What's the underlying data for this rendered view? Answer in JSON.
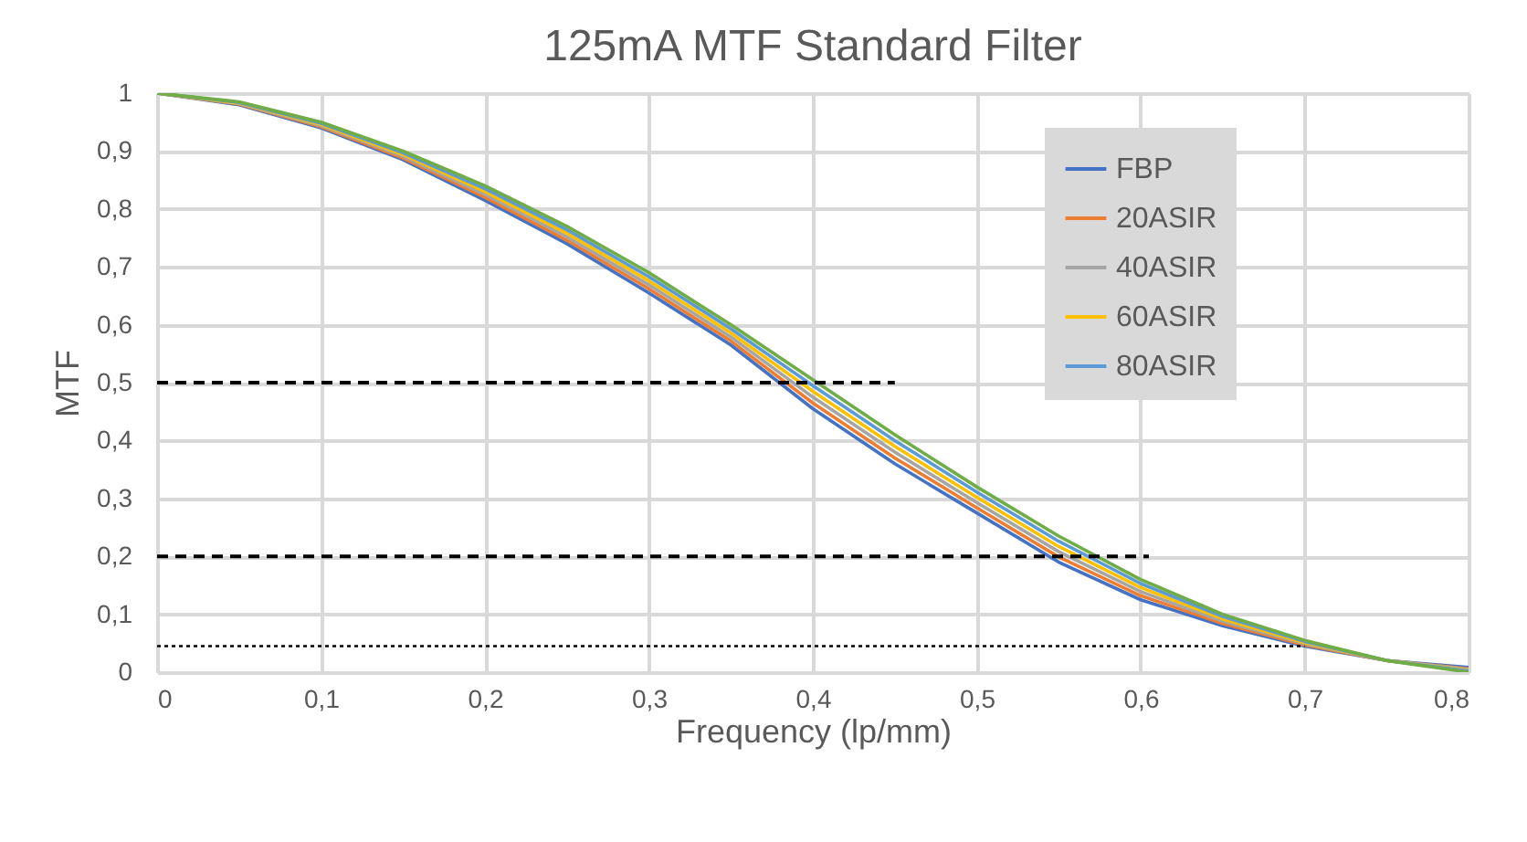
{
  "chart_data": {
    "type": "line",
    "title": "125mA MTF Standard Filter",
    "xlabel": "Frequency (lp/mm)",
    "ylabel": "MTF",
    "x": [
      0,
      0.05,
      0.1,
      0.15,
      0.2,
      0.25,
      0.3,
      0.35,
      0.4,
      0.45,
      0.5,
      0.55,
      0.6,
      0.65,
      0.7,
      0.75,
      0.8
    ],
    "series": [
      {
        "name": "FBP",
        "color": "#4472c4",
        "values": [
          1,
          0.98,
          0.94,
          0.885,
          0.815,
          0.74,
          0.655,
          0.565,
          0.455,
          0.36,
          0.275,
          0.19,
          0.125,
          0.08,
          0.045,
          0.02,
          0.008
        ]
      },
      {
        "name": "20ASIR",
        "color": "#ed7d31",
        "values": [
          1,
          0.981,
          0.942,
          0.888,
          0.82,
          0.746,
          0.662,
          0.572,
          0.465,
          0.37,
          0.284,
          0.199,
          0.132,
          0.084,
          0.047,
          0.02,
          0.006
        ]
      },
      {
        "name": "40ASIR",
        "color": "#a5a5a5",
        "values": [
          1,
          0.982,
          0.944,
          0.891,
          0.825,
          0.752,
          0.669,
          0.579,
          0.475,
          0.38,
          0.293,
          0.208,
          0.139,
          0.088,
          0.049,
          0.02,
          0.005
        ]
      },
      {
        "name": "60ASIR",
        "color": "#ffc000",
        "values": [
          1,
          0.983,
          0.946,
          0.894,
          0.83,
          0.758,
          0.676,
          0.586,
          0.485,
          0.39,
          0.302,
          0.217,
          0.146,
          0.092,
          0.051,
          0.02,
          0.003
        ]
      },
      {
        "name": "80ASIR",
        "color": "#5b9bd5",
        "values": [
          1,
          0.984,
          0.948,
          0.897,
          0.835,
          0.764,
          0.683,
          0.593,
          0.495,
          0.4,
          0.311,
          0.226,
          0.153,
          0.096,
          0.053,
          0.02,
          0.002
        ]
      },
      {
        "color": "#70ad47",
        "values": [
          1,
          0.985,
          0.95,
          0.9,
          0.84,
          0.77,
          0.69,
          0.6,
          0.505,
          0.41,
          0.32,
          0.235,
          0.16,
          0.1,
          0.055,
          0.02,
          0
        ]
      },
      {
        "color": "#000000",
        "line_style": "dashed",
        "x": [
          0,
          0.45
        ],
        "values": [
          0.5,
          0.5
        ]
      },
      {
        "color": "#000000",
        "line_style": "dashed",
        "x": [
          0,
          0.605
        ],
        "values": [
          0.2,
          0.2
        ]
      },
      {
        "color": "#000000",
        "line_style": "dotted",
        "x": [
          0,
          0.7
        ],
        "values": [
          0.045,
          0.045
        ]
      }
    ],
    "xlim": [
      0,
      0.8
    ],
    "ylim": [
      0,
      1
    ],
    "xticks": [
      0,
      {
        "value": 0.1,
        "label": "0,1"
      },
      {
        "value": 0.2,
        "label": "0,2"
      },
      {
        "value": 0.3,
        "label": "0,3"
      },
      {
        "value": 0.4,
        "label": "0,4"
      },
      {
        "value": 0.5,
        "label": "0,5"
      },
      {
        "value": 0.6,
        "label": "0,6"
      },
      {
        "value": 0.7,
        "label": "0,7"
      },
      {
        "value": 0.8,
        "label": "0,8"
      }
    ],
    "yticks": [
      0,
      {
        "value": 0.1,
        "label": "0,1"
      },
      {
        "value": 0.2,
        "label": "0,2"
      },
      {
        "value": 0.3,
        "label": "0,3"
      },
      {
        "value": 0.4,
        "label": "0,4"
      },
      {
        "value": 0.5,
        "label": "0,5"
      },
      {
        "value": 0.6,
        "label": "0,6"
      },
      {
        "value": 0.7,
        "label": "0,7"
      },
      {
        "value": 0.8,
        "label": "0,8"
      },
      {
        "value": 0.9,
        "label": "0,9"
      },
      1
    ],
    "grid": true,
    "legend": "top right",
    "marker": "none",
    "line_style": "solid"
  }
}
